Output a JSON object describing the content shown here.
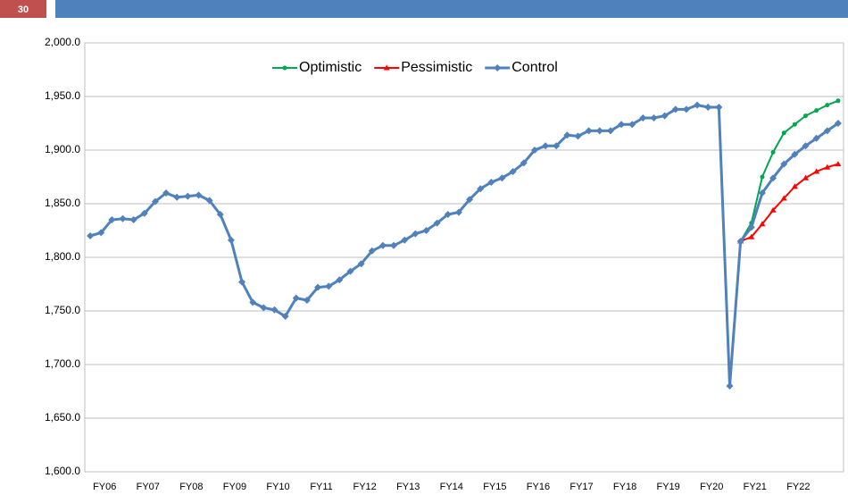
{
  "slide_number": "30",
  "chart_data": {
    "type": "line",
    "categories": [
      null,
      "FY06",
      null,
      null,
      null,
      "FY07",
      null,
      null,
      null,
      "FY08",
      null,
      null,
      null,
      "FY09",
      null,
      null,
      null,
      "FY10",
      null,
      null,
      null,
      "FY11",
      null,
      null,
      null,
      "FY12",
      null,
      null,
      null,
      "FY13",
      null,
      null,
      null,
      "FY14",
      null,
      null,
      null,
      "FY15",
      null,
      null,
      null,
      "FY16",
      null,
      null,
      null,
      "FY17",
      null,
      null,
      null,
      "FY18",
      null,
      null,
      null,
      "FY19",
      null,
      null,
      null,
      "FY20",
      null,
      null,
      null,
      "FY21",
      null,
      null,
      null,
      "FY22",
      null,
      null,
      null,
      null
    ],
    "series": [
      {
        "name": "Optimistic",
        "color": "#00a650",
        "marker": "circle",
        "values": [
          null,
          null,
          null,
          null,
          null,
          null,
          null,
          null,
          null,
          null,
          null,
          null,
          null,
          null,
          null,
          null,
          null,
          null,
          null,
          null,
          null,
          null,
          null,
          null,
          null,
          null,
          null,
          null,
          null,
          null,
          null,
          null,
          null,
          null,
          null,
          null,
          null,
          null,
          null,
          null,
          null,
          null,
          null,
          null,
          null,
          null,
          null,
          null,
          null,
          null,
          null,
          null,
          null,
          null,
          null,
          null,
          null,
          null,
          null,
          null,
          1815,
          1832,
          1875,
          1898,
          1916,
          1924,
          1932,
          1937,
          1942,
          1946
        ]
      },
      {
        "name": "Pessimistic",
        "color": "#ff0000",
        "marker": "triangle",
        "values": [
          null,
          null,
          null,
          null,
          null,
          null,
          null,
          null,
          null,
          null,
          null,
          null,
          null,
          null,
          null,
          null,
          null,
          null,
          null,
          null,
          null,
          null,
          null,
          null,
          null,
          null,
          null,
          null,
          null,
          null,
          null,
          null,
          null,
          null,
          null,
          null,
          null,
          null,
          null,
          null,
          null,
          null,
          null,
          null,
          null,
          null,
          null,
          null,
          null,
          null,
          null,
          null,
          null,
          null,
          null,
          null,
          null,
          null,
          null,
          null,
          1815,
          1819,
          1831,
          1844,
          1855,
          1866,
          1874,
          1880,
          1884,
          1887
        ]
      },
      {
        "name": "Control",
        "color": "#4f81bd",
        "marker": "diamond",
        "values": [
          1820,
          1823,
          1835,
          1836,
          1835,
          1841,
          1852,
          1860,
          1856,
          1857,
          1858,
          1853,
          1840,
          1816,
          1777,
          1758,
          1753,
          1751,
          1745,
          1762,
          1760,
          1772,
          1773,
          1779,
          1787,
          1794,
          1806,
          1811,
          1811,
          1816,
          1822,
          1825,
          1832,
          1840,
          1842,
          1854,
          1864,
          1870,
          1874,
          1880,
          1888,
          1900,
          1904,
          1904,
          1914,
          1913,
          1918,
          1918,
          1918,
          1924,
          1924,
          1930,
          1930,
          1932,
          1938,
          1938,
          1942,
          1940,
          1940,
          1680,
          1815,
          1828,
          1860,
          1874,
          1887,
          1896,
          1904,
          1911,
          1918,
          1925
        ]
      }
    ],
    "ylim": [
      1600,
      2000
    ],
    "yticks": [
      {
        "value": 1600,
        "label": "1,600.0"
      },
      {
        "value": 1650,
        "label": "1,650.0"
      },
      {
        "value": 1700,
        "label": "1,700.0"
      },
      {
        "value": 1750,
        "label": "1,750.0"
      },
      {
        "value": 1800,
        "label": "1,800.0"
      },
      {
        "value": 1850,
        "label": "1,850.0"
      },
      {
        "value": 1900,
        "label": "1,900.0"
      },
      {
        "value": 1950,
        "label": "1,950.0"
      },
      {
        "value": 2000,
        "label": "2,000.0"
      }
    ],
    "grid": true,
    "legend": "top"
  }
}
